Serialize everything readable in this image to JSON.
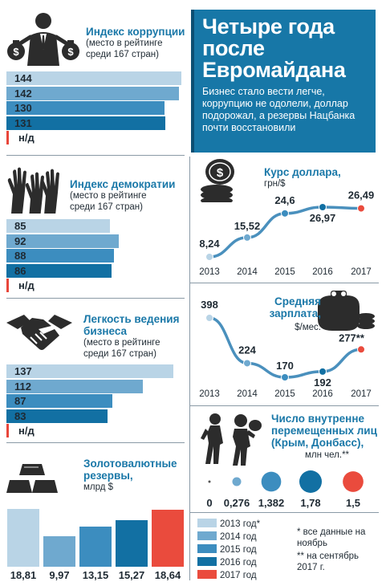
{
  "colors": {
    "y2013": "#b9d4e6",
    "y2014": "#6fa9cf",
    "y2015": "#3c8dbf",
    "y2016": "#1270a3",
    "y2017": "#ea4b3d",
    "title_blue": "#1a78a8"
  },
  "headline": {
    "title": "Четыре года после Евромайдана",
    "lead": "Бизнес стало вести легче, коррупцию не одолели, доллар подорожал, а резервы Нацбанка почти восстановили"
  },
  "corruption": {
    "title": "Индекс коррупции",
    "subtitle": "(место в рейтинге среди 167 стран)",
    "icon": "businessman-money-bags-icon",
    "na_label": "н/д",
    "chart_data": {
      "type": "bar",
      "orientation": "horizontal",
      "categories": [
        "2013",
        "2014",
        "2015",
        "2016",
        "2017"
      ],
      "values": [
        144,
        142,
        130,
        131,
        null
      ]
    }
  },
  "democracy": {
    "title": "Индекс демократии",
    "subtitle": "(место в рейтинге среди 167 стран)",
    "icon": "raised-hands-icon",
    "na_label": "н/д",
    "chart_data": {
      "type": "bar",
      "orientation": "horizontal",
      "categories": [
        "2013",
        "2014",
        "2015",
        "2016",
        "2017"
      ],
      "values": [
        85,
        92,
        88,
        86,
        null
      ]
    }
  },
  "business": {
    "title": "Легкость ведения бизнеса",
    "subtitle": "(место в рейтинге среди 167 стран)",
    "icon": "handshake-icon",
    "na_label": "н/д",
    "chart_data": {
      "type": "bar",
      "orientation": "horizontal",
      "categories": [
        "2013",
        "2014",
        "2015",
        "2016",
        "2017"
      ],
      "values": [
        137,
        112,
        87,
        83,
        null
      ]
    }
  },
  "reserves": {
    "title": "Золотовалютные резервы,",
    "unit": "млрд $",
    "icon": "gold-bars-icon",
    "chart_data": {
      "type": "bar",
      "categories": [
        "2013",
        "2014",
        "2015",
        "2016",
        "2017"
      ],
      "values": [
        18.81,
        9.97,
        13.15,
        15.27,
        18.64
      ],
      "labels": [
        "18,81",
        "9,97",
        "13,15",
        "15,27",
        "18,64"
      ]
    }
  },
  "dollar": {
    "title": "Курс доллара,",
    "unit": "грн/$",
    "icon": "coin-stack-icon",
    "chart_data": {
      "type": "line",
      "x": [
        "2013",
        "2014",
        "2015",
        "2016",
        "2017"
      ],
      "values": [
        8.24,
        15.52,
        24.6,
        26.97,
        26.49
      ],
      "labels": [
        "8,24",
        "15,52",
        "24,6",
        "26,97",
        "26,49"
      ]
    }
  },
  "salary": {
    "title": "Средняя зарплата,",
    "unit": "$/мес.",
    "icon": "wallet-coins-icon",
    "chart_data": {
      "type": "line",
      "x": [
        "2013",
        "2014",
        "2015",
        "2016",
        "2017"
      ],
      "values": [
        398,
        224,
        170,
        192,
        277
      ],
      "labels": [
        "398",
        "224",
        "170",
        "192",
        "277**"
      ]
    }
  },
  "idp": {
    "title": "Число внутренне перемещенных лиц (Крым, Донбасс),",
    "unit": "млн чел.**",
    "icon": "refugees-icon",
    "chart_data": {
      "type": "scatter",
      "categories": [
        "2013",
        "2014",
        "2015",
        "2016",
        "2017"
      ],
      "values": [
        0,
        0.276,
        1.382,
        1.78,
        1.5
      ],
      "labels": [
        "0",
        "0,276",
        "1,382",
        "1,78",
        "1,5"
      ]
    }
  },
  "legend": [
    {
      "label": "2013 год*",
      "color": "#b9d4e6"
    },
    {
      "label": "2014 год",
      "color": "#6fa9cf"
    },
    {
      "label": "2015 год",
      "color": "#3c8dbf"
    },
    {
      "label": "2016 год",
      "color": "#1270a3"
    },
    {
      "label": "2017 год",
      "color": "#ea4b3d"
    }
  ],
  "notes": {
    "note1": "* все данные на ноябрь",
    "note2": "** на сентябрь 2017 г."
  }
}
